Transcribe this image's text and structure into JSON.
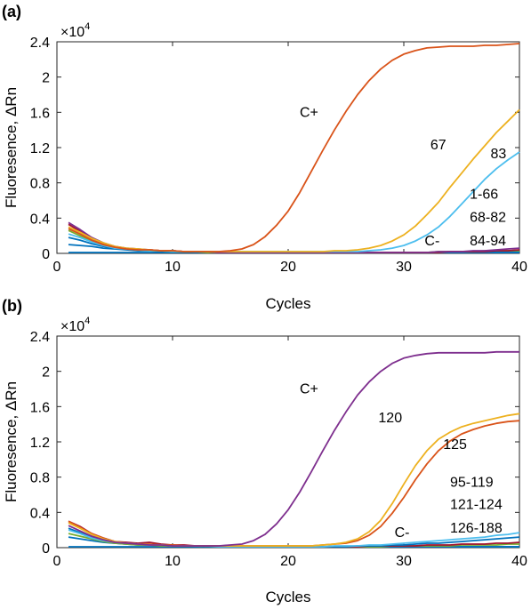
{
  "figure": {
    "panels": [
      {
        "label": "(a)",
        "exponent_base": "×10",
        "exponent_power": "4",
        "annotations": [
          {
            "text": "C+",
            "x": 21.0,
            "y": 1.55
          },
          {
            "text": "67",
            "x": 32.3,
            "y": 1.18
          },
          {
            "text": "83",
            "x": 37.5,
            "y": 1.08
          },
          {
            "text": "1-66",
            "x": 35.7,
            "y": 0.62
          },
          {
            "text": "68-82",
            "x": 35.7,
            "y": 0.36
          },
          {
            "text": "C-",
            "x": 31.8,
            "y": 0.09
          },
          {
            "text": "84-94",
            "x": 35.7,
            "y": 0.09
          }
        ]
      },
      {
        "label": "(b)",
        "exponent_base": "×10",
        "exponent_power": "4",
        "annotations": [
          {
            "text": "C+",
            "x": 21.0,
            "y": 1.75
          },
          {
            "text": "120",
            "x": 27.8,
            "y": 1.42
          },
          {
            "text": "125",
            "x": 33.4,
            "y": 1.12
          },
          {
            "text": "95-119",
            "x": 34.0,
            "y": 0.69
          },
          {
            "text": "121-124",
            "x": 34.0,
            "y": 0.44
          },
          {
            "text": "C-",
            "x": 29.2,
            "y": 0.12
          },
          {
            "text": "126-188",
            "x": 34.0,
            "y": 0.17
          }
        ]
      }
    ]
  },
  "chart_data": [
    {
      "type": "line",
      "title": "",
      "xlabel": "Cycles",
      "ylabel": "Fluoresence, ΔRn",
      "xlim": [
        0,
        40
      ],
      "ylim": [
        0,
        2.4
      ],
      "xticks": [
        "0",
        "10",
        "20",
        "30",
        "40"
      ],
      "yticks": [
        "0",
        "0.4",
        "0.8",
        "1.2",
        "1.6",
        "2",
        "2.4"
      ],
      "x": [
        1,
        2,
        3,
        4,
        5,
        6,
        7,
        8,
        9,
        10,
        11,
        12,
        13,
        14,
        15,
        16,
        17,
        18,
        19,
        20,
        21,
        22,
        23,
        24,
        25,
        26,
        27,
        28,
        29,
        30,
        31,
        32,
        33,
        34,
        35,
        36,
        37,
        38,
        39,
        40
      ],
      "series": [
        {
          "name": "C+",
          "color": "#D95319",
          "values": [
            0.28,
            0.22,
            0.15,
            0.1,
            0.07,
            0.05,
            0.04,
            0.04,
            0.03,
            0.03,
            0.02,
            0.02,
            0.02,
            0.02,
            0.03,
            0.05,
            0.1,
            0.19,
            0.32,
            0.48,
            0.69,
            0.93,
            1.17,
            1.4,
            1.61,
            1.8,
            1.96,
            2.09,
            2.19,
            2.26,
            2.3,
            2.33,
            2.34,
            2.35,
            2.35,
            2.35,
            2.36,
            2.36,
            2.37,
            2.38
          ]
        },
        {
          "name": "67",
          "color": "#EDB120",
          "values": [
            0.3,
            0.24,
            0.17,
            0.12,
            0.08,
            0.06,
            0.05,
            0.04,
            0.03,
            0.03,
            0.02,
            0.02,
            0.02,
            0.02,
            0.02,
            0.02,
            0.02,
            0.02,
            0.02,
            0.02,
            0.02,
            0.02,
            0.02,
            0.03,
            0.03,
            0.04,
            0.06,
            0.09,
            0.14,
            0.21,
            0.31,
            0.44,
            0.58,
            0.75,
            0.91,
            1.07,
            1.22,
            1.37,
            1.5,
            1.63
          ]
        },
        {
          "name": "83",
          "color": "#4DBEEE",
          "values": [
            0.22,
            0.18,
            0.13,
            0.09,
            0.06,
            0.05,
            0.04,
            0.03,
            0.03,
            0.02,
            0.02,
            0.02,
            0.02,
            0.02,
            0.02,
            0.02,
            0.02,
            0.02,
            0.02,
            0.02,
            0.02,
            0.02,
            0.02,
            0.02,
            0.02,
            0.02,
            0.03,
            0.04,
            0.06,
            0.09,
            0.14,
            0.21,
            0.3,
            0.42,
            0.56,
            0.7,
            0.84,
            0.96,
            1.06,
            1.15
          ]
        },
        {
          "name": "",
          "color": "#7E2F8E",
          "values": [
            0.35,
            0.27,
            0.18,
            0.12,
            0.08,
            0.06,
            0.05,
            0.04,
            0.03,
            0.03,
            0.02,
            0.02,
            0.02,
            0.01,
            0.01,
            0.01,
            0.01,
            0.01,
            0.01,
            0.01,
            0.01,
            0.01,
            0.01,
            0.01,
            0.01,
            0.01,
            0.01,
            0.01,
            0.01,
            0.01,
            0.01,
            0.01,
            0.02,
            0.02,
            0.02,
            0.03,
            0.03,
            0.04,
            0.05,
            0.06
          ]
        },
        {
          "name": "",
          "color": "#A2142F",
          "values": [
            0.33,
            0.25,
            0.17,
            0.11,
            0.07,
            0.05,
            0.04,
            0.04,
            0.03,
            0.03,
            0.02,
            0.02,
            0.02,
            0.01,
            0.01,
            0.01,
            0.01,
            0.01,
            0.01,
            0.01,
            0.01,
            0.01,
            0.01,
            0.01,
            0.01,
            0.01,
            0.01,
            0.01,
            0.01,
            0.01,
            0.01,
            0.01,
            0.01,
            0.02,
            0.02,
            0.02,
            0.02,
            0.03,
            0.03,
            0.04
          ]
        },
        {
          "name": "",
          "color": "#77AC30",
          "values": [
            0.26,
            0.2,
            0.14,
            0.1,
            0.07,
            0.05,
            0.04,
            0.03,
            0.03,
            0.02,
            0.02,
            0.02,
            0.01,
            0.01,
            0.01,
            0.01,
            0.01,
            0.01,
            0.01,
            0.01,
            0.01,
            0.01,
            0.01,
            0.01,
            0.01,
            0.01,
            0.01,
            0.01,
            0.01,
            0.01,
            0.01,
            0.01,
            0.02,
            0.02,
            0.02,
            0.02,
            0.03,
            0.03,
            0.03,
            0.03
          ]
        },
        {
          "name": "",
          "color": "#0072BD",
          "values": [
            0.18,
            0.15,
            0.11,
            0.08,
            0.06,
            0.05,
            0.04,
            0.03,
            0.03,
            0.02,
            0.02,
            0.02,
            0.02,
            0.01,
            0.01,
            0.01,
            0.01,
            0.01,
            0.01,
            0.01,
            0.01,
            0.01,
            0.01,
            0.01,
            0.01,
            0.01,
            0.01,
            0.01,
            0.01,
            0.01,
            0.01,
            0.01,
            0.01,
            0.01,
            0.01,
            0.02,
            0.02,
            0.02,
            0.02,
            0.02
          ]
        },
        {
          "name": "C-",
          "color": "#0072BD",
          "values": [
            0.1,
            0.09,
            0.08,
            0.06,
            0.05,
            0.04,
            0.03,
            0.03,
            0.02,
            0.02,
            0.02,
            0.01,
            0.01,
            0.01,
            0.01,
            0.01,
            0.01,
            0.01,
            0.01,
            0.01,
            0.01,
            0.01,
            0.01,
            0.01,
            0.01,
            0.01,
            0.01,
            0.01,
            0.01,
            0.01,
            0.01,
            0.01,
            0.01,
            0.01,
            0.01,
            0.01,
            0.01,
            0.01,
            0.01,
            0.01
          ]
        },
        {
          "name": "",
          "color": "#0072BD",
          "values": [
            0.01,
            0.01,
            0.01,
            0.01,
            0.01,
            0.01,
            0.01,
            0.01,
            0.01,
            0.01,
            0.01,
            0.01,
            0.01,
            0.01,
            0.01,
            0.01,
            0.01,
            0.01,
            0.01,
            0.01,
            0.01,
            0.01,
            0.01,
            0.01,
            0.01,
            0.01,
            0.01,
            0.01,
            0.01,
            0.01,
            0.01,
            0.01,
            0.01,
            0.01,
            0.01,
            0.01,
            0.01,
            0.01,
            0.01,
            0.01
          ]
        }
      ]
    },
    {
      "type": "line",
      "title": "",
      "xlabel": "Cycles",
      "ylabel": "Fluoresence, ΔRn",
      "xlim": [
        0,
        40
      ],
      "ylim": [
        0,
        2.4
      ],
      "xticks": [
        "0",
        "10",
        "20",
        "30",
        "40"
      ],
      "yticks": [
        "0",
        "0.4",
        "0.8",
        "1.2",
        "1.6",
        "2",
        "2.4"
      ],
      "x": [
        1,
        2,
        3,
        4,
        5,
        6,
        7,
        8,
        9,
        10,
        11,
        12,
        13,
        14,
        15,
        16,
        17,
        18,
        19,
        20,
        21,
        22,
        23,
        24,
        25,
        26,
        27,
        28,
        29,
        30,
        31,
        32,
        33,
        34,
        35,
        36,
        37,
        38,
        39,
        40
      ],
      "series": [
        {
          "name": "C+",
          "color": "#7E2F8E",
          "values": [
            0.25,
            0.19,
            0.13,
            0.09,
            0.06,
            0.05,
            0.04,
            0.03,
            0.03,
            0.02,
            0.02,
            0.02,
            0.02,
            0.02,
            0.03,
            0.04,
            0.08,
            0.15,
            0.27,
            0.43,
            0.63,
            0.86,
            1.1,
            1.33,
            1.54,
            1.73,
            1.88,
            2.0,
            2.09,
            2.15,
            2.18,
            2.2,
            2.21,
            2.21,
            2.21,
            2.21,
            2.21,
            2.22,
            2.22,
            2.22
          ]
        },
        {
          "name": "120",
          "color": "#EDB120",
          "values": [
            0.28,
            0.22,
            0.15,
            0.1,
            0.07,
            0.05,
            0.04,
            0.03,
            0.03,
            0.02,
            0.02,
            0.02,
            0.02,
            0.02,
            0.02,
            0.02,
            0.02,
            0.02,
            0.02,
            0.02,
            0.02,
            0.02,
            0.03,
            0.04,
            0.06,
            0.1,
            0.18,
            0.31,
            0.5,
            0.72,
            0.93,
            1.1,
            1.23,
            1.31,
            1.37,
            1.41,
            1.44,
            1.47,
            1.5,
            1.52
          ]
        },
        {
          "name": "125",
          "color": "#D95319",
          "values": [
            0.3,
            0.23,
            0.16,
            0.11,
            0.07,
            0.05,
            0.04,
            0.04,
            0.03,
            0.03,
            0.02,
            0.02,
            0.02,
            0.02,
            0.02,
            0.02,
            0.02,
            0.02,
            0.02,
            0.02,
            0.02,
            0.02,
            0.03,
            0.04,
            0.05,
            0.08,
            0.14,
            0.24,
            0.39,
            0.57,
            0.77,
            0.95,
            1.1,
            1.21,
            1.29,
            1.34,
            1.38,
            1.41,
            1.43,
            1.44
          ]
        },
        {
          "name": "",
          "color": "#4DBEEE",
          "values": [
            0.2,
            0.16,
            0.11,
            0.08,
            0.06,
            0.05,
            0.04,
            0.03,
            0.03,
            0.02,
            0.02,
            0.02,
            0.02,
            0.01,
            0.01,
            0.01,
            0.01,
            0.01,
            0.01,
            0.01,
            0.01,
            0.01,
            0.01,
            0.02,
            0.02,
            0.02,
            0.03,
            0.03,
            0.04,
            0.05,
            0.06,
            0.07,
            0.08,
            0.09,
            0.1,
            0.11,
            0.12,
            0.14,
            0.15,
            0.17
          ]
        },
        {
          "name": "",
          "color": "#0072BD",
          "values": [
            0.22,
            0.17,
            0.12,
            0.09,
            0.06,
            0.05,
            0.04,
            0.03,
            0.03,
            0.02,
            0.02,
            0.02,
            0.01,
            0.01,
            0.01,
            0.01,
            0.01,
            0.01,
            0.01,
            0.01,
            0.01,
            0.01,
            0.01,
            0.01,
            0.01,
            0.02,
            0.02,
            0.02,
            0.03,
            0.03,
            0.04,
            0.05,
            0.05,
            0.06,
            0.07,
            0.08,
            0.09,
            0.1,
            0.11,
            0.12
          ]
        },
        {
          "name": "",
          "color": "#A2142F",
          "values": [
            0.3,
            0.24,
            0.16,
            0.11,
            0.07,
            0.06,
            0.05,
            0.06,
            0.04,
            0.03,
            0.03,
            0.02,
            0.02,
            0.02,
            0.01,
            0.01,
            0.01,
            0.01,
            0.01,
            0.01,
            0.01,
            0.01,
            0.01,
            0.01,
            0.01,
            0.01,
            0.02,
            0.02,
            0.02,
            0.02,
            0.02,
            0.03,
            0.03,
            0.03,
            0.04,
            0.04,
            0.04,
            0.05,
            0.05,
            0.06
          ]
        },
        {
          "name": "",
          "color": "#77AC30",
          "values": [
            0.16,
            0.13,
            0.1,
            0.07,
            0.05,
            0.04,
            0.03,
            0.03,
            0.02,
            0.02,
            0.02,
            0.02,
            0.01,
            0.01,
            0.01,
            0.01,
            0.01,
            0.01,
            0.01,
            0.01,
            0.01,
            0.01,
            0.01,
            0.01,
            0.01,
            0.01,
            0.01,
            0.01,
            0.02,
            0.02,
            0.02,
            0.02,
            0.02,
            0.02,
            0.03,
            0.03,
            0.03,
            0.03,
            0.04,
            0.04
          ]
        },
        {
          "name": "C-",
          "color": "#0072BD",
          "values": [
            0.12,
            0.1,
            0.08,
            0.06,
            0.05,
            0.04,
            0.03,
            0.03,
            0.02,
            0.02,
            0.02,
            0.01,
            0.01,
            0.01,
            0.01,
            0.01,
            0.01,
            0.01,
            0.01,
            0.01,
            0.01,
            0.01,
            0.01,
            0.01,
            0.01,
            0.01,
            0.01,
            0.01,
            0.01,
            0.01,
            0.01,
            0.01,
            0.01,
            0.01,
            0.01,
            0.01,
            0.01,
            0.01,
            0.01,
            0.01
          ]
        },
        {
          "name": "",
          "color": "#0072BD",
          "values": [
            0.01,
            0.01,
            0.01,
            0.01,
            0.01,
            0.01,
            0.01,
            0.01,
            0.01,
            0.01,
            0.01,
            0.01,
            0.01,
            0.01,
            0.01,
            0.01,
            0.01,
            0.01,
            0.01,
            0.01,
            0.01,
            0.01,
            0.01,
            0.01,
            0.01,
            0.01,
            0.01,
            0.01,
            0.01,
            0.01,
            0.01,
            0.01,
            0.01,
            0.01,
            0.01,
            0.01,
            0.01,
            0.01,
            0.01,
            0.01
          ]
        }
      ]
    }
  ]
}
